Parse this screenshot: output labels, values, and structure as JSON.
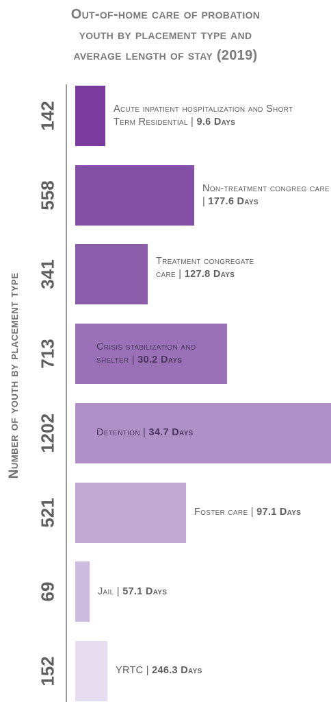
{
  "chart_data": {
    "type": "bar",
    "orientation": "horizontal",
    "title_lines": [
      "Out-of-home care of probation",
      "youth by placement type and",
      "average length of stay (2019)"
    ],
    "ylabel": "Number of youth by placement type",
    "categories": [
      "Acute inpatient hospitalization and Short Term Residential",
      "Non-treatment congregate care",
      "Treatment congregate care",
      "Crisis stabilization and shelter",
      "Detention",
      "Foster care",
      "Jail",
      "YRTC"
    ],
    "values": [
      142,
      558,
      341,
      713,
      1202,
      521,
      69,
      152
    ],
    "count_labels": [
      "142",
      "558",
      "341",
      "713",
      "1202",
      "521",
      "69",
      "152"
    ],
    "bar_labels": [
      {
        "text": "Acute inpatient hospitalization and Short Term Residential |",
        "bold": "9.6 Days"
      },
      {
        "text": "Non-treatment congreg care |",
        "bold": "177.6 Days"
      },
      {
        "text": "Treatment congregate care |",
        "bold": "127.8 Days"
      },
      {
        "text": "Crisis stabilization and shelter |",
        "bold": "30.2 Days"
      },
      {
        "text": "Detention |",
        "bold": "34.7 Days"
      },
      {
        "text": "Foster care |",
        "bold": "97.1 Days"
      },
      {
        "text": "Jail |",
        "bold": "57.1 Days"
      },
      {
        "text": "YRTC |",
        "bold": "246.3 Days"
      }
    ],
    "avg_length_of_stay_days": [
      9.6,
      177.6,
      127.8,
      30.2,
      34.7,
      97.1,
      57.1,
      246.3
    ],
    "colors": [
      "#7b3a9e",
      "#8450a5",
      "#8b5caa",
      "#9a71b6",
      "#b091c7",
      "#c1a8d3",
      "#cdbbe0",
      "#e6def0"
    ],
    "label_colors": [
      "#5e5e5e",
      "#5e5e5e",
      "#5e5e5e",
      "#4a3560",
      "#4a3560",
      "#5e5e5e",
      "#5e5e5e",
      "#5e5e5e"
    ],
    "xlim": [
      0,
      1202
    ],
    "grid": false
  }
}
